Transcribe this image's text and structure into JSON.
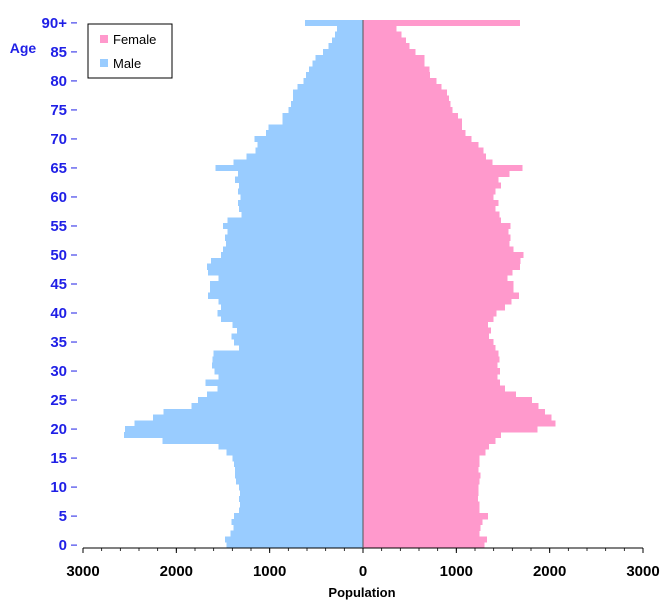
{
  "chart_data": {
    "type": "bar",
    "orientation": "horizontal-pyramid",
    "xlabel": "Population",
    "ylabel": "Age",
    "xlim": [
      -3000,
      3000
    ],
    "ylim": [
      0,
      90
    ],
    "x_ticks": [
      {
        "value": -3000,
        "label": "3000"
      },
      {
        "value": -2000,
        "label": "2000"
      },
      {
        "value": -1000,
        "label": "1000"
      },
      {
        "value": 0,
        "label": "0"
      },
      {
        "value": 1000,
        "label": "1000"
      },
      {
        "value": 2000,
        "label": "2000"
      },
      {
        "value": 3000,
        "label": "3000"
      }
    ],
    "y_ticks": [
      {
        "value": 0,
        "label": "0"
      },
      {
        "value": 5,
        "label": "5"
      },
      {
        "value": 10,
        "label": "10"
      },
      {
        "value": 15,
        "label": "15"
      },
      {
        "value": 20,
        "label": "20"
      },
      {
        "value": 25,
        "label": "25"
      },
      {
        "value": 30,
        "label": "30"
      },
      {
        "value": 35,
        "label": "35"
      },
      {
        "value": 40,
        "label": "40"
      },
      {
        "value": 45,
        "label": "45"
      },
      {
        "value": 50,
        "label": "50"
      },
      {
        "value": 55,
        "label": "55"
      },
      {
        "value": 60,
        "label": "60"
      },
      {
        "value": 65,
        "label": "65"
      },
      {
        "value": 70,
        "label": "70"
      },
      {
        "value": 75,
        "label": "75"
      },
      {
        "value": 80,
        "label": "80"
      },
      {
        "value": 85,
        "label": "85"
      },
      {
        "value": 90,
        "label": "90+"
      }
    ],
    "legend": {
      "position": "top-left"
    },
    "grid": false,
    "ages": [
      0,
      1,
      2,
      3,
      4,
      5,
      6,
      7,
      8,
      9,
      10,
      11,
      12,
      13,
      14,
      15,
      16,
      17,
      18,
      19,
      20,
      21,
      22,
      23,
      24,
      25,
      26,
      27,
      28,
      29,
      30,
      31,
      32,
      33,
      34,
      35,
      36,
      37,
      38,
      39,
      40,
      41,
      42,
      43,
      44,
      45,
      46,
      47,
      48,
      49,
      50,
      51,
      52,
      53,
      54,
      55,
      56,
      57,
      58,
      59,
      60,
      61,
      62,
      63,
      64,
      65,
      66,
      67,
      68,
      69,
      70,
      71,
      72,
      73,
      74,
      75,
      76,
      77,
      78,
      79,
      80,
      81,
      82,
      83,
      84,
      85,
      86,
      87,
      88,
      89,
      90
    ],
    "series": [
      {
        "name": "Female",
        "color": "#ff99cc",
        "side": "right",
        "values": [
          1300,
          1330,
          1250,
          1260,
          1280,
          1340,
          1250,
          1250,
          1230,
          1240,
          1240,
          1250,
          1260,
          1240,
          1250,
          1250,
          1310,
          1350,
          1420,
          1480,
          1870,
          2060,
          2020,
          1950,
          1880,
          1810,
          1640,
          1520,
          1470,
          1440,
          1470,
          1440,
          1460,
          1450,
          1420,
          1400,
          1350,
          1370,
          1340,
          1400,
          1430,
          1520,
          1590,
          1670,
          1610,
          1610,
          1550,
          1600,
          1680,
          1690,
          1720,
          1610,
          1570,
          1580,
          1560,
          1580,
          1480,
          1460,
          1420,
          1450,
          1400,
          1420,
          1480,
          1450,
          1570,
          1710,
          1390,
          1320,
          1290,
          1240,
          1160,
          1100,
          1060,
          1060,
          1020,
          960,
          940,
          920,
          900,
          840,
          790,
          720,
          710,
          660,
          660,
          560,
          500,
          460,
          410,
          360,
          1680
        ]
      },
      {
        "name": "Male",
        "color": "#99ccff",
        "side": "left",
        "values": [
          1460,
          1480,
          1420,
          1390,
          1410,
          1380,
          1330,
          1320,
          1330,
          1320,
          1330,
          1360,
          1370,
          1370,
          1380,
          1400,
          1460,
          1550,
          2150,
          2560,
          2550,
          2450,
          2250,
          2140,
          1840,
          1770,
          1670,
          1560,
          1690,
          1550,
          1590,
          1620,
          1610,
          1600,
          1330,
          1380,
          1410,
          1350,
          1400,
          1520,
          1560,
          1520,
          1550,
          1660,
          1640,
          1640,
          1550,
          1660,
          1670,
          1630,
          1520,
          1500,
          1470,
          1480,
          1450,
          1500,
          1450,
          1300,
          1330,
          1340,
          1310,
          1340,
          1330,
          1370,
          1340,
          1580,
          1390,
          1250,
          1150,
          1130,
          1160,
          1040,
          1010,
          860,
          860,
          800,
          770,
          750,
          750,
          700,
          640,
          610,
          580,
          540,
          510,
          430,
          370,
          330,
          300,
          280,
          620
        ]
      }
    ]
  }
}
